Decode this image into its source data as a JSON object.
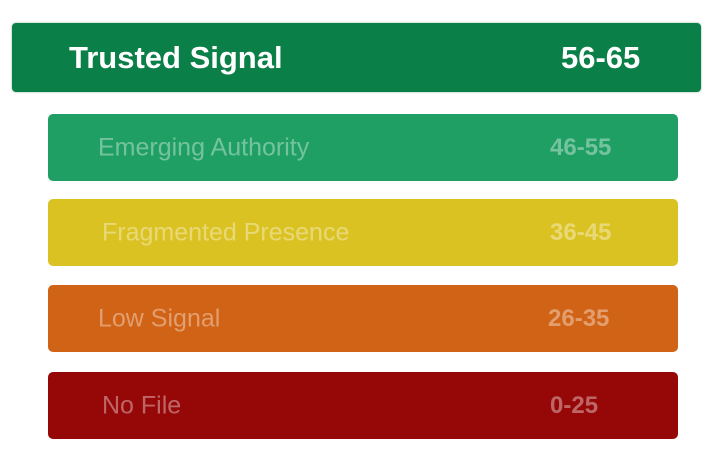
{
  "tiers": [
    {
      "label": "Trusted Signal",
      "range": "56-65",
      "color": "#0b7f48",
      "active": true
    },
    {
      "label": "Emerging Authority",
      "range": "46-55",
      "color": "#1f9f63",
      "active": false
    },
    {
      "label": "Fragmented Presence",
      "range": "36-45",
      "color": "#dbc223",
      "active": false
    },
    {
      "label": "Low Signal",
      "range": "26-35",
      "color": "#d06316",
      "active": false
    },
    {
      "label": "No File",
      "range": "0-25",
      "color": "#960808",
      "active": false
    }
  ]
}
